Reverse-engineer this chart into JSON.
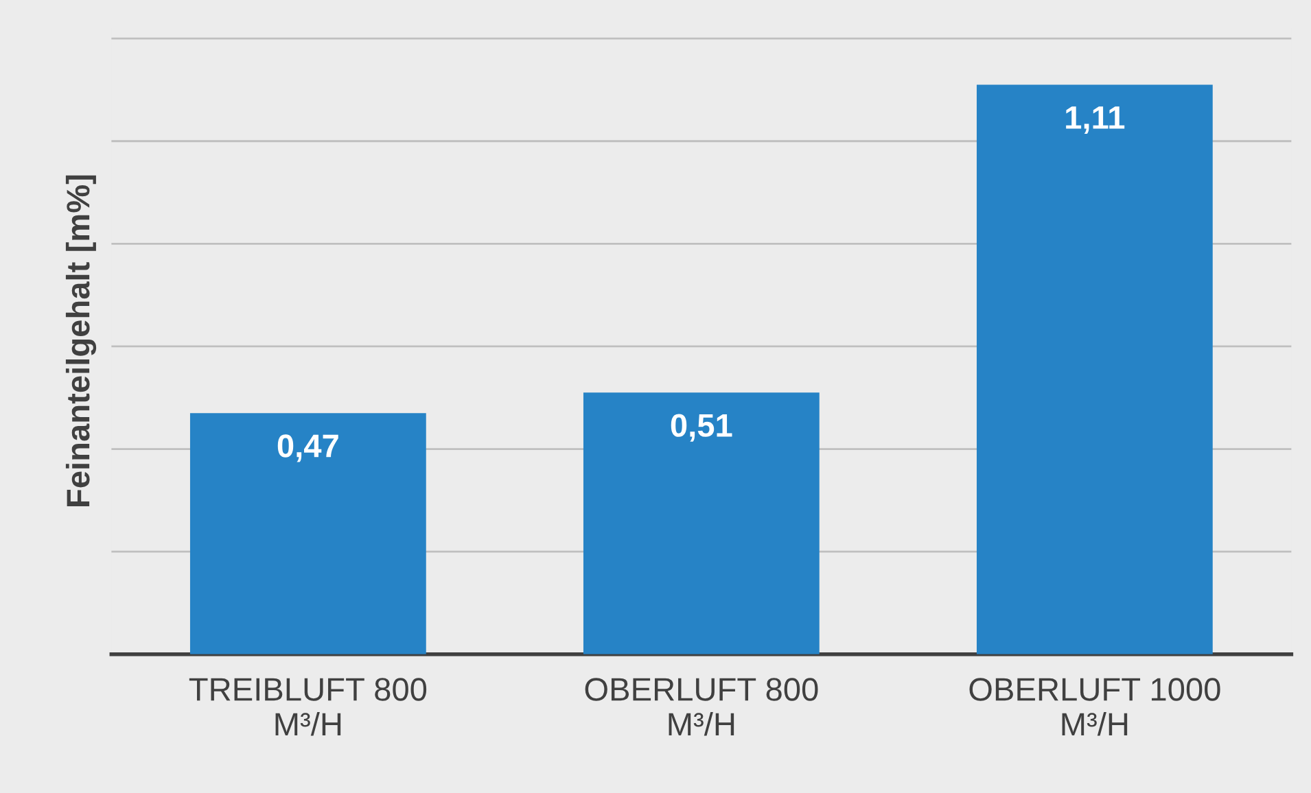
{
  "chart_data": {
    "type": "bar",
    "ylabel": "Feinanteilgehalt [m%]",
    "categories": [
      "TREIBLUFT 800\nM³/H",
      "OBERLUFT 800\nM³/H",
      "OBERLUFT 1000\nM³/H"
    ],
    "values": [
      0.47,
      0.51,
      1.11
    ],
    "color": "#2683c6",
    "value_labels": [
      "0,47",
      "0,51",
      "1,11"
    ],
    "tick_labels": "x",
    "grid": "y"
  }
}
